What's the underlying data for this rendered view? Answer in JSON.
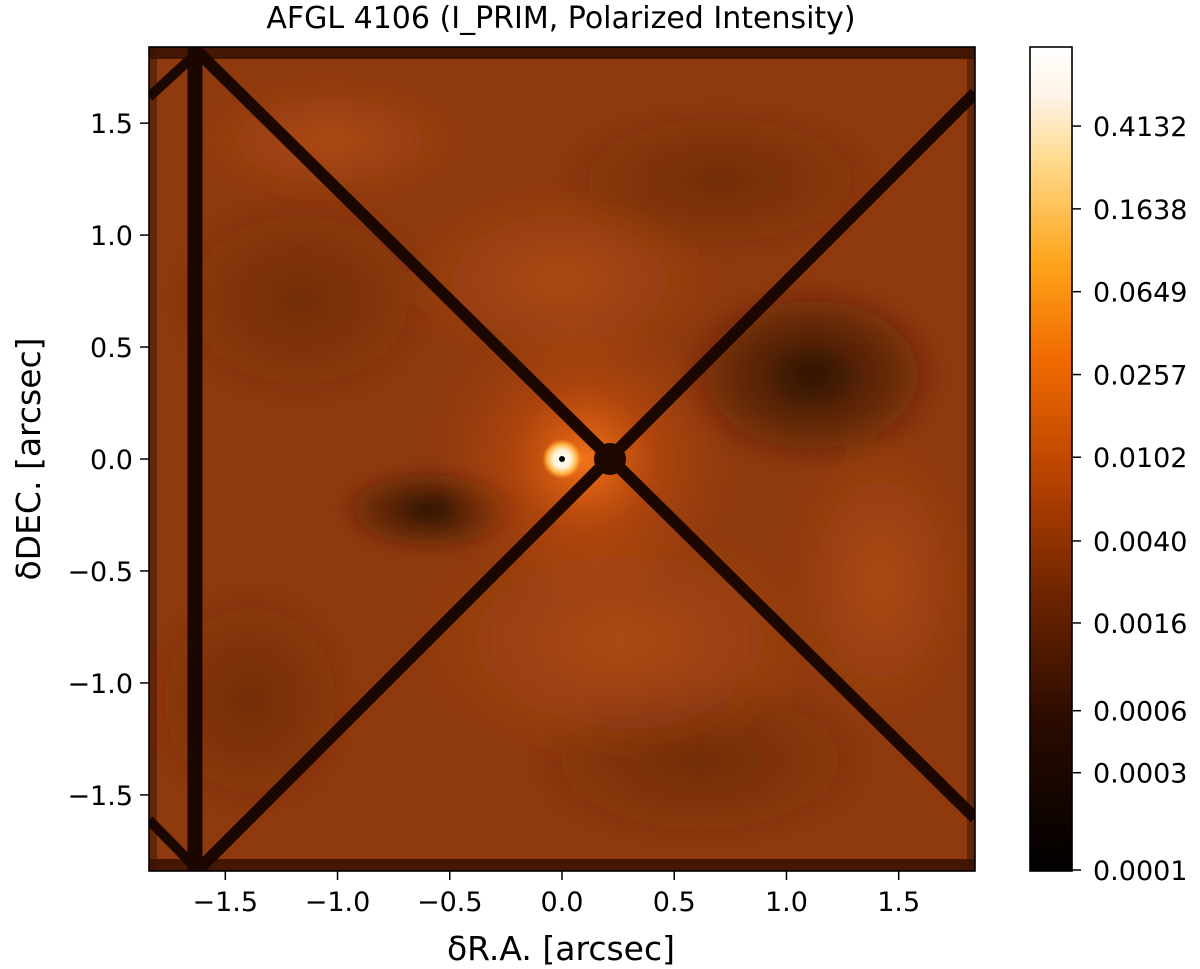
{
  "chart_data": {
    "type": "heatmap",
    "title": "AFGL 4106 (I_PRIM, Polarized Intensity)",
    "xlabel": "δR.A. [arcsec]",
    "ylabel": "δDEC. [arcsec]",
    "xlim": [
      -1.84,
      1.84
    ],
    "ylim": [
      -1.84,
      1.84
    ],
    "x_ticks": [
      -1.5,
      -1.0,
      -0.5,
      0.0,
      0.5,
      1.0,
      1.5
    ],
    "x_tick_labels": [
      "−1.5",
      "−1.0",
      "−0.5",
      "0.0",
      "0.5",
      "1.0",
      "1.5"
    ],
    "y_ticks": [
      1.5,
      1.0,
      0.5,
      0.0,
      -0.5,
      -1.0,
      -1.5
    ],
    "y_tick_labels": [
      "1.5",
      "1.0",
      "0.5",
      "0.0",
      "−0.5",
      "−1.0",
      "−1.5"
    ],
    "colormap": "afmhot",
    "colorbar": {
      "scale": "log",
      "range": [
        0.0001,
        1.0
      ],
      "ticks": [
        0.4132,
        0.1638,
        0.0649,
        0.0257,
        0.0102,
        0.004,
        0.0016,
        0.0006,
        0.0003,
        0.0001
      ],
      "tick_labels": [
        "0.4132",
        "0.1638",
        "0.0649",
        "0.0257",
        "0.0102",
        "0.0040",
        "0.0016",
        "0.0006",
        "0.0003",
        "0.0001"
      ]
    },
    "features": {
      "star_position": [
        0.0,
        0.0
      ],
      "coronagraph_mask_center": [
        0.22,
        0.0
      ],
      "spider_crossing": [
        0.22,
        0.0
      ],
      "dark_lobes": [
        [
          1.1,
          0.35
        ],
        [
          -0.55,
          -0.25
        ]
      ]
    },
    "colors": {
      "background_field": "#8f3a0e",
      "spider_dark": "#1c0700",
      "bright_core": "#ffffff"
    }
  }
}
